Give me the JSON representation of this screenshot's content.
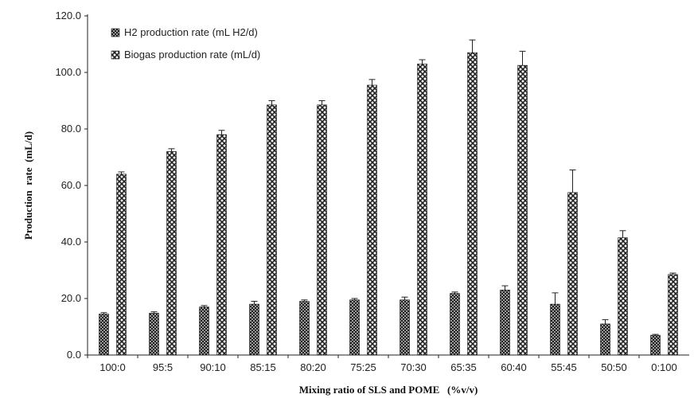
{
  "chart_data": {
    "type": "bar",
    "title": "",
    "xlabel": "Mixing ratio of SLS and POME   (%v/v)",
    "ylabel": "Production  rate  (mL/d)",
    "categories": [
      "100:0",
      "95:5",
      "90:10",
      "85:15",
      "80:20",
      "75:25",
      "70:30",
      "65:35",
      "60:40",
      "55:45",
      "50:50",
      "0:100"
    ],
    "y_ticks": [
      "0.0",
      "20.0",
      "40.0",
      "60.0",
      "80.0",
      "100.0",
      "120.0"
    ],
    "ylim": [
      0,
      120
    ],
    "grid": false,
    "legend_placement": "top-left",
    "series": [
      {
        "name": "H2 production rate (mL H2/d)",
        "values": [
          14.5,
          14.8,
          17.0,
          18.0,
          19.0,
          19.5,
          19.5,
          21.8,
          23.0,
          18.0,
          11.0,
          7.0
        ],
        "errors": [
          0.5,
          0.5,
          0.5,
          1.0,
          0.5,
          0.5,
          1.0,
          0.5,
          1.5,
          4.0,
          1.5,
          0.3
        ],
        "color": "#2b2b2b"
      },
      {
        "name": "Biogas production rate (mL/d)",
        "values": [
          64.0,
          72.0,
          78.0,
          88.5,
          88.5,
          95.5,
          103.0,
          107.0,
          102.5,
          57.5,
          41.5,
          28.5
        ],
        "errors": [
          0.8,
          1.0,
          1.5,
          1.5,
          1.5,
          2.0,
          1.5,
          4.5,
          5.0,
          8.0,
          2.5,
          0.5
        ],
        "color": "#3a3a3a"
      }
    ]
  }
}
